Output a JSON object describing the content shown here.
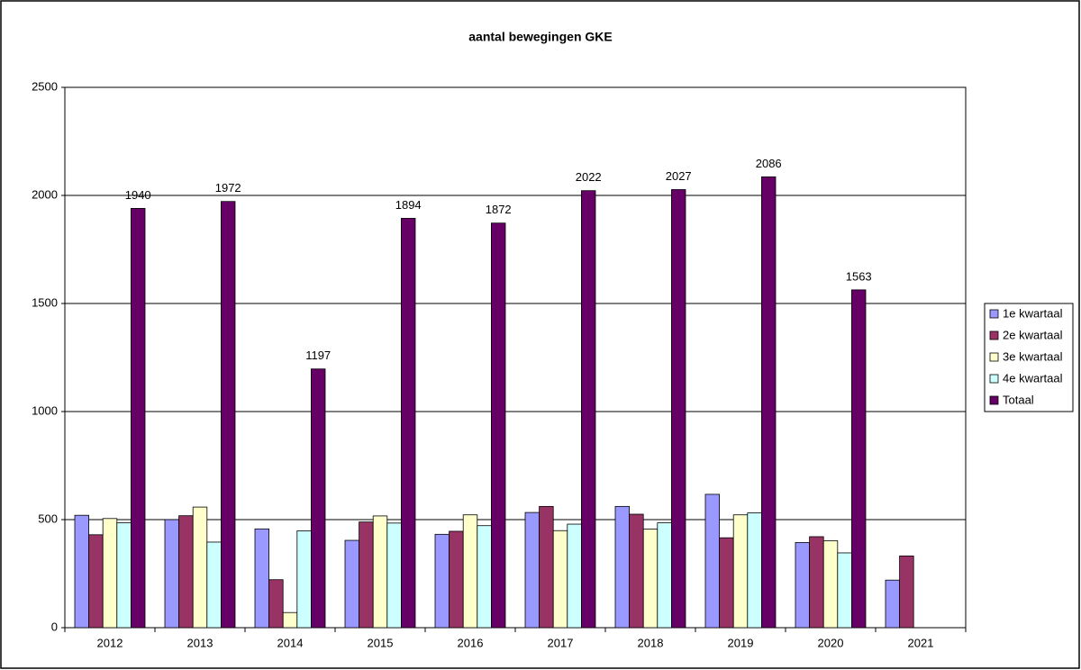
{
  "chart_data": {
    "type": "bar",
    "title": "aantal bewegingen GKE",
    "categories": [
      "2012",
      "2013",
      "2014",
      "2015",
      "2016",
      "2017",
      "2018",
      "2019",
      "2020",
      "2021"
    ],
    "series": [
      {
        "name": "1e kwartaal",
        "color": "#9999ff",
        "values": [
          520,
          500,
          457,
          404,
          432,
          533,
          561,
          617,
          394,
          220
        ]
      },
      {
        "name": "2e kwartaal",
        "color": "#993366",
        "values": [
          430,
          518,
          222,
          489,
          446,
          561,
          525,
          416,
          421,
          332
        ]
      },
      {
        "name": "3e kwartaal",
        "color": "#ffffcc",
        "values": [
          505,
          558,
          70,
          517,
          522,
          449,
          456,
          522,
          402,
          null
        ]
      },
      {
        "name": "4e kwartaal",
        "color": "#ccffff",
        "values": [
          485,
          396,
          448,
          484,
          472,
          479,
          485,
          531,
          346,
          null
        ]
      },
      {
        "name": "Totaal",
        "color": "#660066",
        "values": [
          1940,
          1972,
          1197,
          1894,
          1872,
          2022,
          2027,
          2086,
          1563,
          null
        ],
        "data_labels": true
      }
    ],
    "ylim": [
      0,
      2500
    ],
    "yticks": [
      0,
      500,
      1000,
      1500,
      2000,
      2500
    ],
    "grid": true,
    "legend": "right"
  }
}
